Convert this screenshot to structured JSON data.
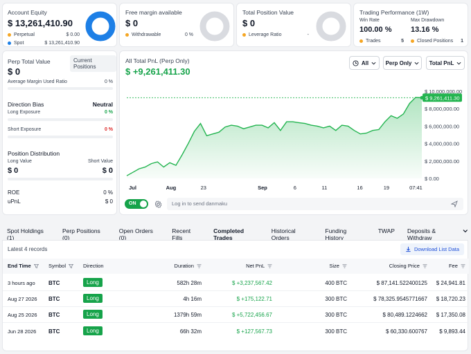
{
  "cards": {
    "equity": {
      "title": "Account Equity",
      "value": "$ 13,261,410.90",
      "perpetual_label": "Perpetual",
      "perpetual_value": "$ 0.00",
      "spot_label": "Spot",
      "spot_value": "$ 13,261,410.90",
      "perp_color": "#f5a623",
      "spot_color": "#1d7fe6"
    },
    "free_margin": {
      "title": "Free margin available",
      "value": "$ 0",
      "withdrawable_label": "Withdrawable",
      "withdrawable_value": "0 %"
    },
    "position": {
      "title": "Total Position Value",
      "value": "$ 0",
      "leverage_label": "Leverage Ratio",
      "leverage_value": "-"
    },
    "performance": {
      "title": "Trading Performance (1W)",
      "win_rate_label": "Win Rate",
      "win_rate_value": "100.00 %",
      "max_dd_label": "Max Drawdown",
      "max_dd_value": "13.16 %",
      "trades_label": "Trades",
      "trades_value": "5",
      "closed_label": "Closed Positions",
      "closed_value": "1"
    }
  },
  "left_panel": {
    "perp_total_label": "Perp Total Value",
    "current_positions_button": "Current Positions",
    "perp_total_value": "$ 0",
    "avg_margin_label": "Average Margin Used Ratio",
    "avg_margin_value": "0 %",
    "direction_bias_label": "Direction Bias",
    "direction_bias_value": "Neutral",
    "long_exposure_label": "Long Exposure",
    "long_exposure_value": "0 %",
    "short_exposure_label": "Short Exposure",
    "short_exposure_value": "0 %",
    "position_distribution_label": "Position Distribution",
    "long_value_label": "Long Value",
    "short_value_label": "Short Value",
    "long_value": "$ 0",
    "short_value": "$ 0",
    "roe_label": "ROE",
    "roe_value": "0 %",
    "upnl_label": "uPnL",
    "upnl_value": "$ 0"
  },
  "pnl_panel": {
    "title": "All Total PnL (Perp Only)",
    "value": "$ +9,261,411.30",
    "filter_all": "All",
    "filter_perp": "Perp Only",
    "filter_total": "Total PnL",
    "toggle_label": "ON",
    "danmaku_placeholder": "Log in to send danmaku"
  },
  "chart_data": {
    "type": "area",
    "x_tick_labels": [
      "Jul",
      "Aug",
      "23",
      "Sep",
      "6",
      "11",
      "16",
      "19",
      "07:41"
    ],
    "y_tick_labels": [
      "$ 10,000,000.00",
      "$ 8,000,000.00",
      "$ 6,000,000.00",
      "$ 4,000,000.00",
      "$ 2,000,000.00",
      "$ 0.00"
    ],
    "ylim": [
      0,
      10000000
    ],
    "values": [
      300000,
      700000,
      1100000,
      1300000,
      1700000,
      1900000,
      1300000,
      1800000,
      1500000,
      2700000,
      4000000,
      5400000,
      6300000,
      4900000,
      5100000,
      5300000,
      5900000,
      6100000,
      6000000,
      5700000,
      5900000,
      6100000,
      6100000,
      5800000,
      6400000,
      5500000,
      6500000,
      6500000,
      6400000,
      6300000,
      6100000,
      6000000,
      5800000,
      6000000,
      5500000,
      6100000,
      6000000,
      5500000,
      5100000,
      5200000,
      5500000,
      5600000,
      6500000,
      7200000,
      6900000,
      7400000,
      8600000,
      9300000,
      9261411
    ],
    "last_value_label": "$ 9,261,411.30",
    "line_color": "#22b44f",
    "ref_line_color": "#22b44f"
  },
  "tabs": [
    {
      "label": "Spot Holdings (1)",
      "active": false
    },
    {
      "label": "Perp Positions (0)",
      "active": false
    },
    {
      "label": "Open Orders (0)",
      "active": false
    },
    {
      "label": "Recent Fills",
      "active": false
    },
    {
      "label": "Completed Trades",
      "active": true
    },
    {
      "label": "Historical Orders",
      "active": false
    },
    {
      "label": "Funding History",
      "active": false
    },
    {
      "label": "TWAP",
      "active": false
    },
    {
      "label": "Deposits & Withdraw",
      "active": false
    }
  ],
  "table": {
    "records_label": "Latest 4 records",
    "download_label": "Download List Data",
    "headers": {
      "end_time": "End Time",
      "symbol": "Symbol",
      "direction": "Direction",
      "duration": "Duration",
      "net_pnl": "Net PnL",
      "size": "Size",
      "closing_price": "Closing Price",
      "fee": "Fee"
    },
    "rows": [
      {
        "end_time": "3 hours ago",
        "symbol": "BTC",
        "direction": "Long",
        "duration": "582h 28m",
        "net_pnl": "$ +3,237,567.42",
        "size": "400 BTC",
        "closing_price": "$ 87,141.522400125",
        "fee": "$ 24,941.81"
      },
      {
        "end_time": "Aug 27 2026",
        "symbol": "BTC",
        "direction": "Long",
        "duration": "4h 16m",
        "net_pnl": "$ +175,122.71",
        "size": "300 BTC",
        "closing_price": "$ 78,325.9545771667",
        "fee": "$ 18,720.23"
      },
      {
        "end_time": "Aug 25 2026",
        "symbol": "BTC",
        "direction": "Long",
        "duration": "1379h 59m",
        "net_pnl": "$ +5,722,456.67",
        "size": "300 BTC",
        "closing_price": "$ 80,489.1224662",
        "fee": "$ 17,350.08"
      },
      {
        "end_time": "Jun 28 2026",
        "symbol": "BTC",
        "direction": "Long",
        "duration": "66h 32m",
        "net_pnl": "$ +127,567.73",
        "size": "300 BTC",
        "closing_price": "$ 60,330.600767",
        "fee": "$ 9,893.44"
      }
    ]
  }
}
